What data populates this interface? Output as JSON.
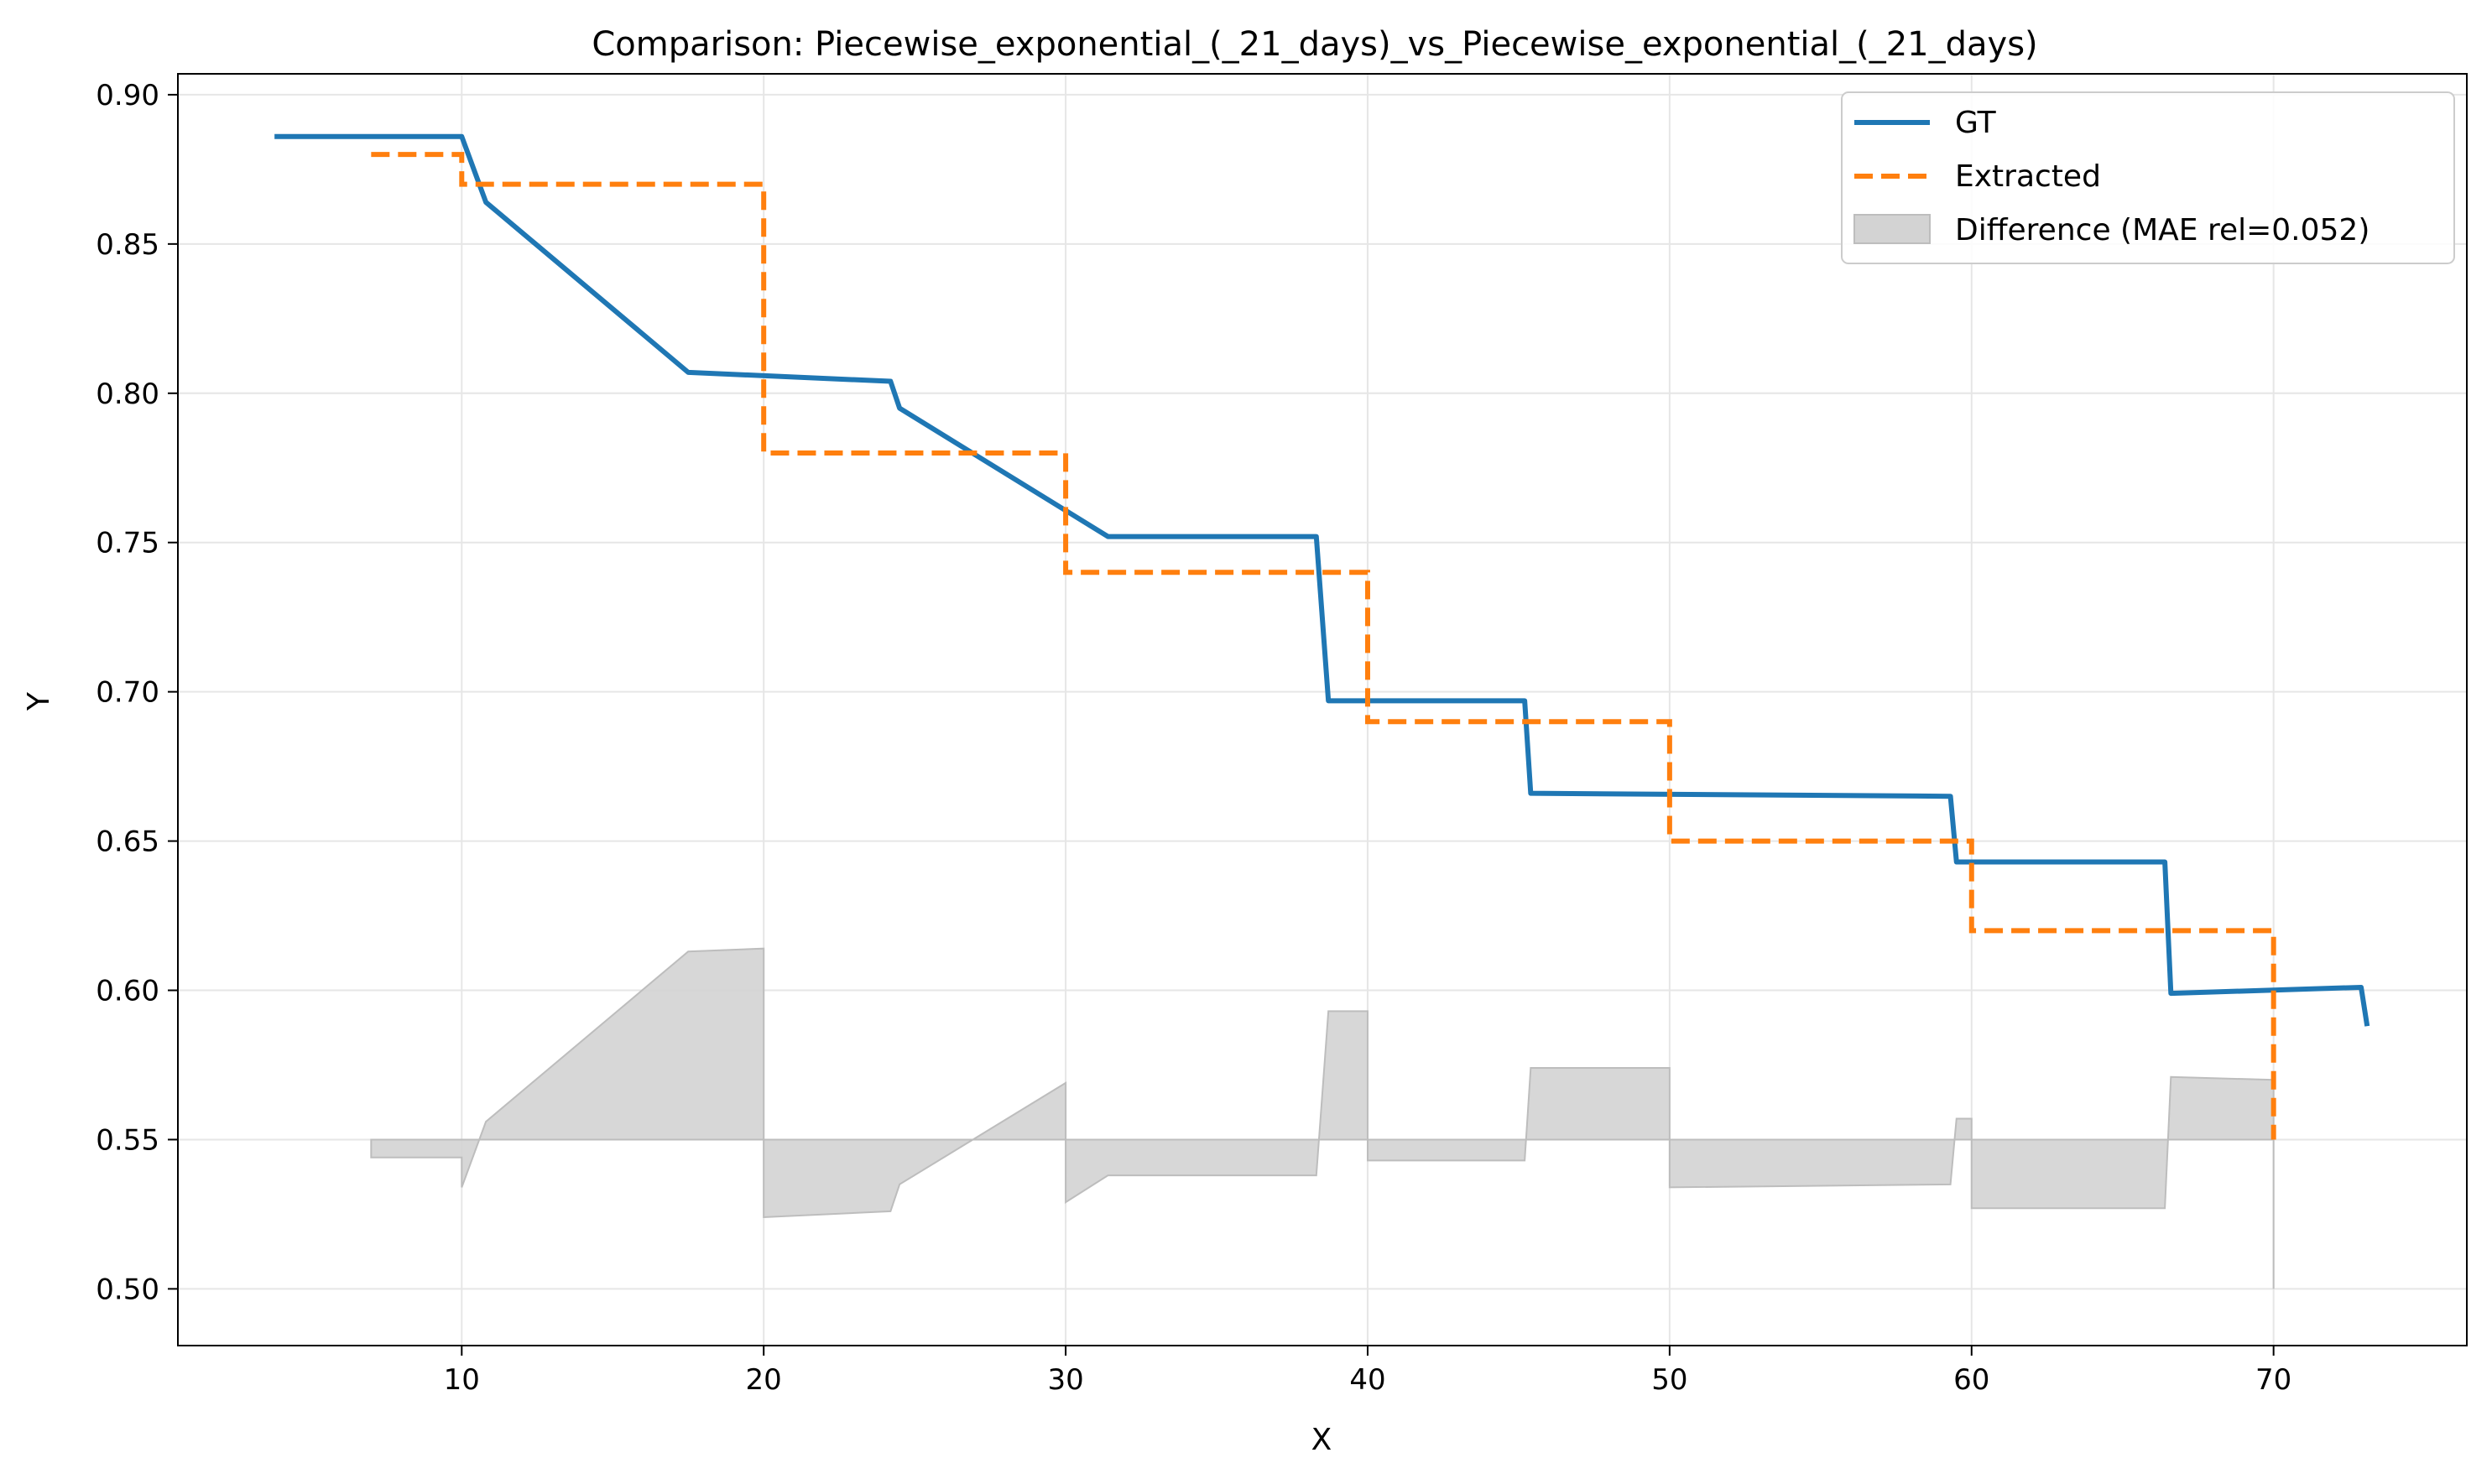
{
  "chart_data": {
    "type": "line",
    "title": "Comparison: Piecewise_exponential_(_21_days)_vs_Piecewise_exponential_(_21_days)",
    "xlabel": "X",
    "ylabel": "Y",
    "xlim": [
      0.6,
      76.4
    ],
    "ylim": [
      0.481,
      0.907
    ],
    "x_ticks": [
      10,
      20,
      30,
      40,
      50,
      60,
      70
    ],
    "y_ticks": [
      0.5,
      0.55,
      0.6,
      0.65,
      0.7,
      0.75,
      0.8,
      0.85,
      0.9
    ],
    "x_tick_labels": [
      "10",
      "20",
      "30",
      "40",
      "50",
      "60",
      "70"
    ],
    "y_tick_labels": [
      "0.50",
      "0.55",
      "0.60",
      "0.65",
      "0.70",
      "0.75",
      "0.80",
      "0.85",
      "0.90"
    ],
    "grid": true,
    "legend_position": "top-right",
    "difference_baseline": 0.55,
    "series": [
      {
        "name": "GT",
        "style": "solid",
        "color": "#1f77b4",
        "x": [
          3.8,
          10.0,
          10.8,
          17.5,
          24.2,
          24.5,
          31.4,
          38.3,
          38.7,
          45.2,
          45.4,
          59.3,
          59.5,
          66.4,
          66.6,
          72.9,
          73.1
        ],
        "y": [
          0.886,
          0.886,
          0.864,
          0.807,
          0.804,
          0.795,
          0.752,
          0.752,
          0.697,
          0.697,
          0.666,
          0.665,
          0.643,
          0.643,
          0.599,
          0.601,
          0.588
        ]
      },
      {
        "name": "Extracted",
        "style": "dashed",
        "color": "#ff7f0e",
        "x": [
          7,
          10,
          10,
          20,
          20,
          30,
          30,
          40,
          40,
          50,
          50,
          60,
          60,
          70,
          70
        ],
        "y": [
          0.88,
          0.88,
          0.87,
          0.87,
          0.78,
          0.78,
          0.74,
          0.74,
          0.69,
          0.69,
          0.65,
          0.65,
          0.62,
          0.62,
          0.55
        ]
      },
      {
        "name": "Difference (MAE rel=0.052)",
        "style": "fill",
        "color": "#d3d3d3",
        "x": [
          7,
          10,
          10,
          10.8,
          17.5,
          20,
          20,
          24.2,
          24.5,
          30,
          30,
          31.4,
          38.3,
          38.7,
          40,
          40,
          45.2,
          45.4,
          50,
          50,
          59.3,
          59.5,
          60,
          60,
          66.4,
          66.6,
          70,
          70
        ],
        "y": [
          0.544,
          0.544,
          0.534,
          0.556,
          0.613,
          0.614,
          0.524,
          0.526,
          0.535,
          0.569,
          0.529,
          0.538,
          0.538,
          0.593,
          0.593,
          0.543,
          0.543,
          0.574,
          0.574,
          0.534,
          0.535,
          0.557,
          0.557,
          0.527,
          0.527,
          0.571,
          0.57,
          0.5
        ]
      }
    ]
  }
}
